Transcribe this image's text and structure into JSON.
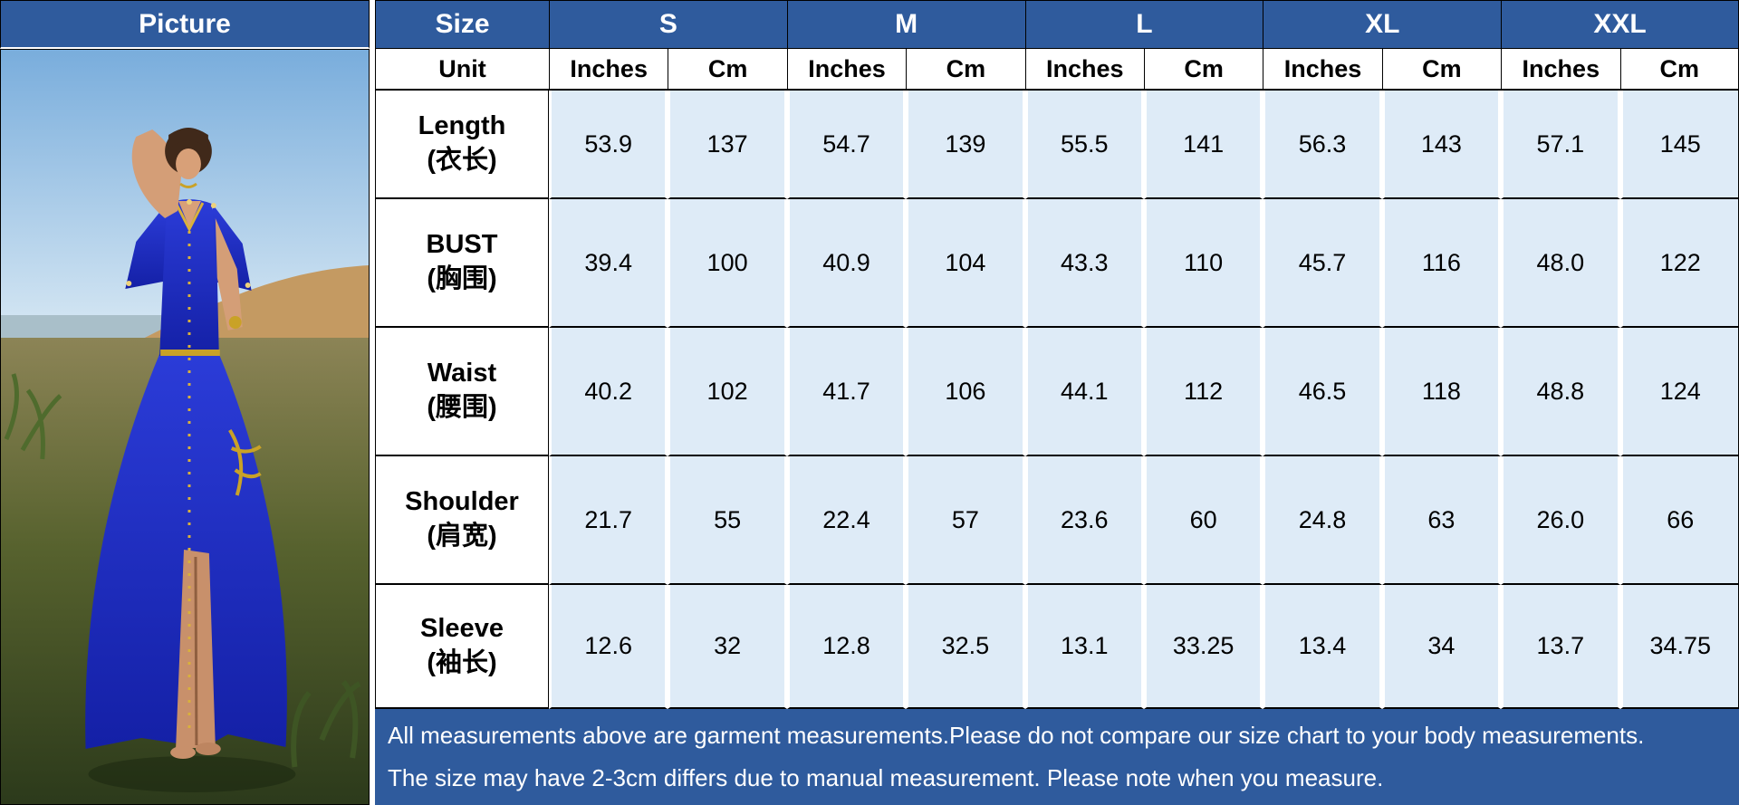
{
  "header": {
    "picture_label": "Picture",
    "size_label": "Size",
    "unit_label": "Unit"
  },
  "table": {
    "sizes": [
      "S",
      "M",
      "L",
      "XL",
      "XXL"
    ],
    "unit_pair": [
      "Inches",
      "Cm"
    ],
    "rows": [
      {
        "key": "length",
        "label_en": "Length",
        "label_zh": "(衣长)",
        "values": [
          "53.9",
          "137",
          "54.7",
          "139",
          "55.5",
          "141",
          "56.3",
          "143",
          "57.1",
          "145"
        ]
      },
      {
        "key": "bust",
        "label_en": "BUST",
        "label_zh": "(胸围)",
        "values": [
          "39.4",
          "100",
          "40.9",
          "104",
          "43.3",
          "110",
          "45.7",
          "116",
          "48.0",
          "122"
        ]
      },
      {
        "key": "waist",
        "label_en": "Waist",
        "label_zh": "(腰围)",
        "values": [
          "40.2",
          "102",
          "41.7",
          "106",
          "44.1",
          "112",
          "46.5",
          "118",
          "48.8",
          "124"
        ]
      },
      {
        "key": "shoulder",
        "label_en": "Shoulder",
        "label_zh": "(肩宽)",
        "values": [
          "21.7",
          "55",
          "22.4",
          "57",
          "23.6",
          "60",
          "24.8",
          "63",
          "26.0",
          "66"
        ]
      },
      {
        "key": "sleeve",
        "label_en": "Sleeve",
        "label_zh": "(袖长)",
        "values": [
          "12.6",
          "32",
          "12.8",
          "32.5",
          "13.1",
          "33.25",
          "13.4",
          "34",
          "13.7",
          "34.75"
        ]
      }
    ]
  },
  "footer": {
    "line1": "All measurements above are garment measurements.Please do not compare our size chart to your body measurements.",
    "line2": "The size may have 2-3cm differs due to manual measurement. Please note when you measure."
  },
  "colors": {
    "header_bg": "#2F5B9D",
    "cell_bg": "#DEEBF7",
    "note_bg": "#2F5B9D",
    "border": "#000000",
    "header_text": "#FFFFFF",
    "dress_blue": "#2233C0",
    "gold": "#C9A227"
  },
  "chart_data": {
    "type": "table",
    "title": "Garment size chart (Inches / Cm per size)",
    "columns": [
      "Size",
      "S Inches",
      "S Cm",
      "M Inches",
      "M Cm",
      "L Inches",
      "L Cm",
      "XL Inches",
      "XL Cm",
      "XXL Inches",
      "XXL Cm"
    ],
    "rows": [
      [
        "Length (衣长)",
        53.9,
        137,
        54.7,
        139,
        55.5,
        141,
        56.3,
        143,
        57.1,
        145
      ],
      [
        "BUST (胸围)",
        39.4,
        100,
        40.9,
        104,
        43.3,
        110,
        45.7,
        116,
        48.0,
        122
      ],
      [
        "Waist (腰围)",
        40.2,
        102,
        41.7,
        106,
        44.1,
        112,
        46.5,
        118,
        48.8,
        124
      ],
      [
        "Shoulder (肩宽)",
        21.7,
        55,
        22.4,
        57,
        23.6,
        60,
        24.8,
        63,
        26.0,
        66
      ],
      [
        "Sleeve (袖长)",
        12.6,
        32,
        12.8,
        32.5,
        13.1,
        33.25,
        13.4,
        34,
        13.7,
        34.75
      ]
    ],
    "notes": [
      "All measurements above are garment measurements.Please do not compare our size chart to your body measurements.",
      "The size may have 2-3cm differs due to manual measurement. Please note when you measure."
    ]
  }
}
